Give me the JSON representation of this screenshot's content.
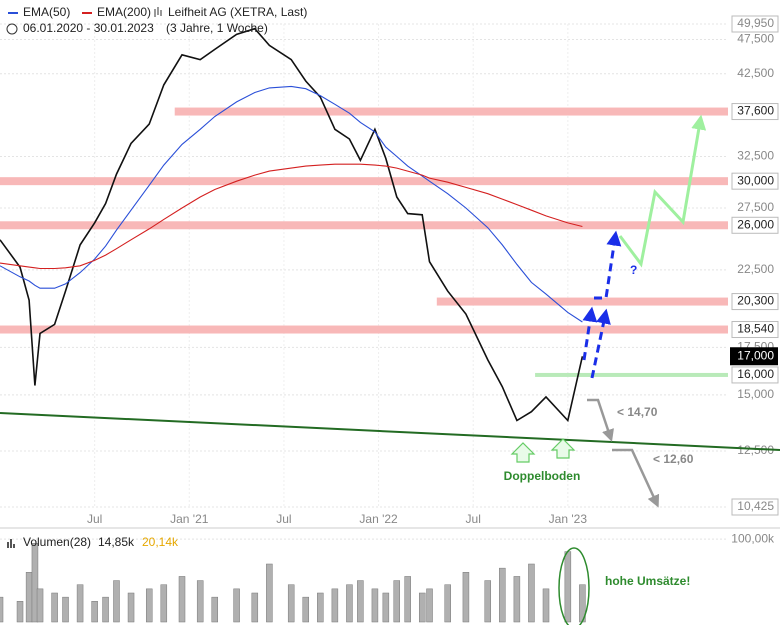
{
  "chart_data": [
    {
      "type": "line",
      "subtitle": "06.01.2020 - 30.01.2023",
      "period": "(3 Jahre, 1 Woche)",
      "x": [
        0,
        5.5,
        8,
        9.6,
        11,
        15,
        18,
        22,
        26,
        29,
        32,
        36,
        41,
        45,
        50,
        55,
        59,
        65,
        70,
        74,
        80,
        84,
        88,
        92,
        96,
        99,
        103,
        106,
        109,
        112,
        116,
        118,
        123,
        128,
        134,
        138,
        142,
        146,
        150,
        156,
        160
      ],
      "xlim": [
        0,
        200
      ],
      "xticks": [
        {
          "value": 26,
          "label": "Jul"
        },
        {
          "value": 52,
          "label": "Jan '21"
        },
        {
          "value": 78,
          "label": "Jul"
        },
        {
          "value": 104,
          "label": "Jan '22"
        },
        {
          "value": 130,
          "label": "Jul"
        },
        {
          "value": 156,
          "label": "Jan '23"
        }
      ],
      "ylim": [
        10425,
        49950
      ],
      "log_scale": true,
      "grid": true,
      "yticks": [
        {
          "value": 49950,
          "label": "49,950"
        },
        {
          "value": 47500,
          "label": "47,500"
        },
        {
          "value": 42500,
          "label": "42,500"
        },
        {
          "value": 32500,
          "label": "32,500"
        },
        {
          "value": 27500,
          "label": "27,500"
        },
        {
          "value": 22500,
          "label": "22,500"
        },
        {
          "value": 17500,
          "label": "17,500"
        },
        {
          "value": 15000,
          "label": "15,000"
        },
        {
          "value": 12500,
          "label": "12,500"
        },
        {
          "value": 10425,
          "label": "10,425"
        }
      ],
      "series": [
        {
          "name": "Leifheit AG (XETRA, Last)",
          "color": "#111111",
          "values": [
            24800,
            22700,
            20400,
            15460,
            18300,
            18850,
            21000,
            24400,
            26200,
            27900,
            30700,
            33900,
            36100,
            41000,
            45200,
            44500,
            46000,
            48300,
            49200,
            46600,
            44500,
            41500,
            39400,
            35500,
            34400,
            32100,
            35500,
            32300,
            28500,
            27000,
            26900,
            23100,
            21000,
            19500,
            16800,
            15400,
            13800,
            14200,
            14900,
            13800,
            17000
          ]
        },
        {
          "name": "EMA(50)",
          "color": "#2a4fd8",
          "values": [
            22800,
            22000,
            21700,
            21400,
            21200,
            21200,
            21500,
            22300,
            23300,
            24300,
            25600,
            27300,
            29600,
            31600,
            33800,
            35500,
            37000,
            38800,
            40000,
            40600,
            40800,
            40500,
            39600,
            38500,
            37400,
            36300,
            35200,
            33500,
            32500,
            31500,
            30500,
            30000,
            28800,
            27500,
            25800,
            24400,
            22900,
            21600,
            20800,
            19600,
            19000
          ]
        },
        {
          "name": "EMA(200)",
          "color": "#d42020",
          "values": [
            23000,
            22800,
            22700,
            22650,
            22600,
            22600,
            22650,
            22800,
            23200,
            23600,
            24100,
            24800,
            25700,
            26500,
            27500,
            28500,
            29200,
            30000,
            30600,
            31000,
            31300,
            31500,
            31600,
            31700,
            31700,
            31700,
            31600,
            31500,
            31300,
            31000,
            30600,
            30300,
            29900,
            29400,
            28800,
            28300,
            27800,
            27300,
            26800,
            26200,
            25900
          ]
        }
      ],
      "levels": [
        {
          "value": 37600,
          "label": "37,600",
          "from": 48,
          "color": "#f8b8b8"
        },
        {
          "value": 30000,
          "label": "30,000",
          "from": 0,
          "color": "#f8b8b8"
        },
        {
          "value": 26000,
          "label": "26,000",
          "from": 0,
          "color": "#f8b8b8"
        },
        {
          "value": 20300,
          "label": "20,300",
          "from": 120,
          "color": "#f8b8b8"
        },
        {
          "value": 18540,
          "label": "18,540",
          "from": 0,
          "color": "#f8b8b8"
        },
        {
          "value": 16000,
          "label": "16,000",
          "from": 147,
          "color": "#b9eab9"
        }
      ],
      "last_price": {
        "value": 17000,
        "label": "17,000"
      },
      "annotations": [
        "?",
        "< 14,70",
        "< 12,60",
        "Doppelboden"
      ]
    },
    {
      "type": "bar",
      "title": "Volumen(28)",
      "readings": [
        "14,85k",
        "20,14k"
      ],
      "color": "#b0b0b0",
      "ylim": [
        0,
        105000
      ],
      "yticks": [
        {
          "value": 100000,
          "label": "100,00k"
        }
      ],
      "values": [
        30000,
        25000,
        60000,
        95000,
        40000,
        35000,
        30000,
        45000,
        25000,
        30000,
        50000,
        35000,
        40000,
        45000,
        55000,
        50000,
        30000,
        40000,
        35000,
        70000,
        45000,
        30000,
        35000,
        40000,
        45000,
        50000,
        40000,
        35000,
        50000,
        55000,
        35000,
        40000,
        45000,
        60000,
        50000,
        65000,
        55000,
        70000,
        40000,
        85000,
        45000
      ],
      "annotation": "hohe Umsätze!"
    }
  ]
}
